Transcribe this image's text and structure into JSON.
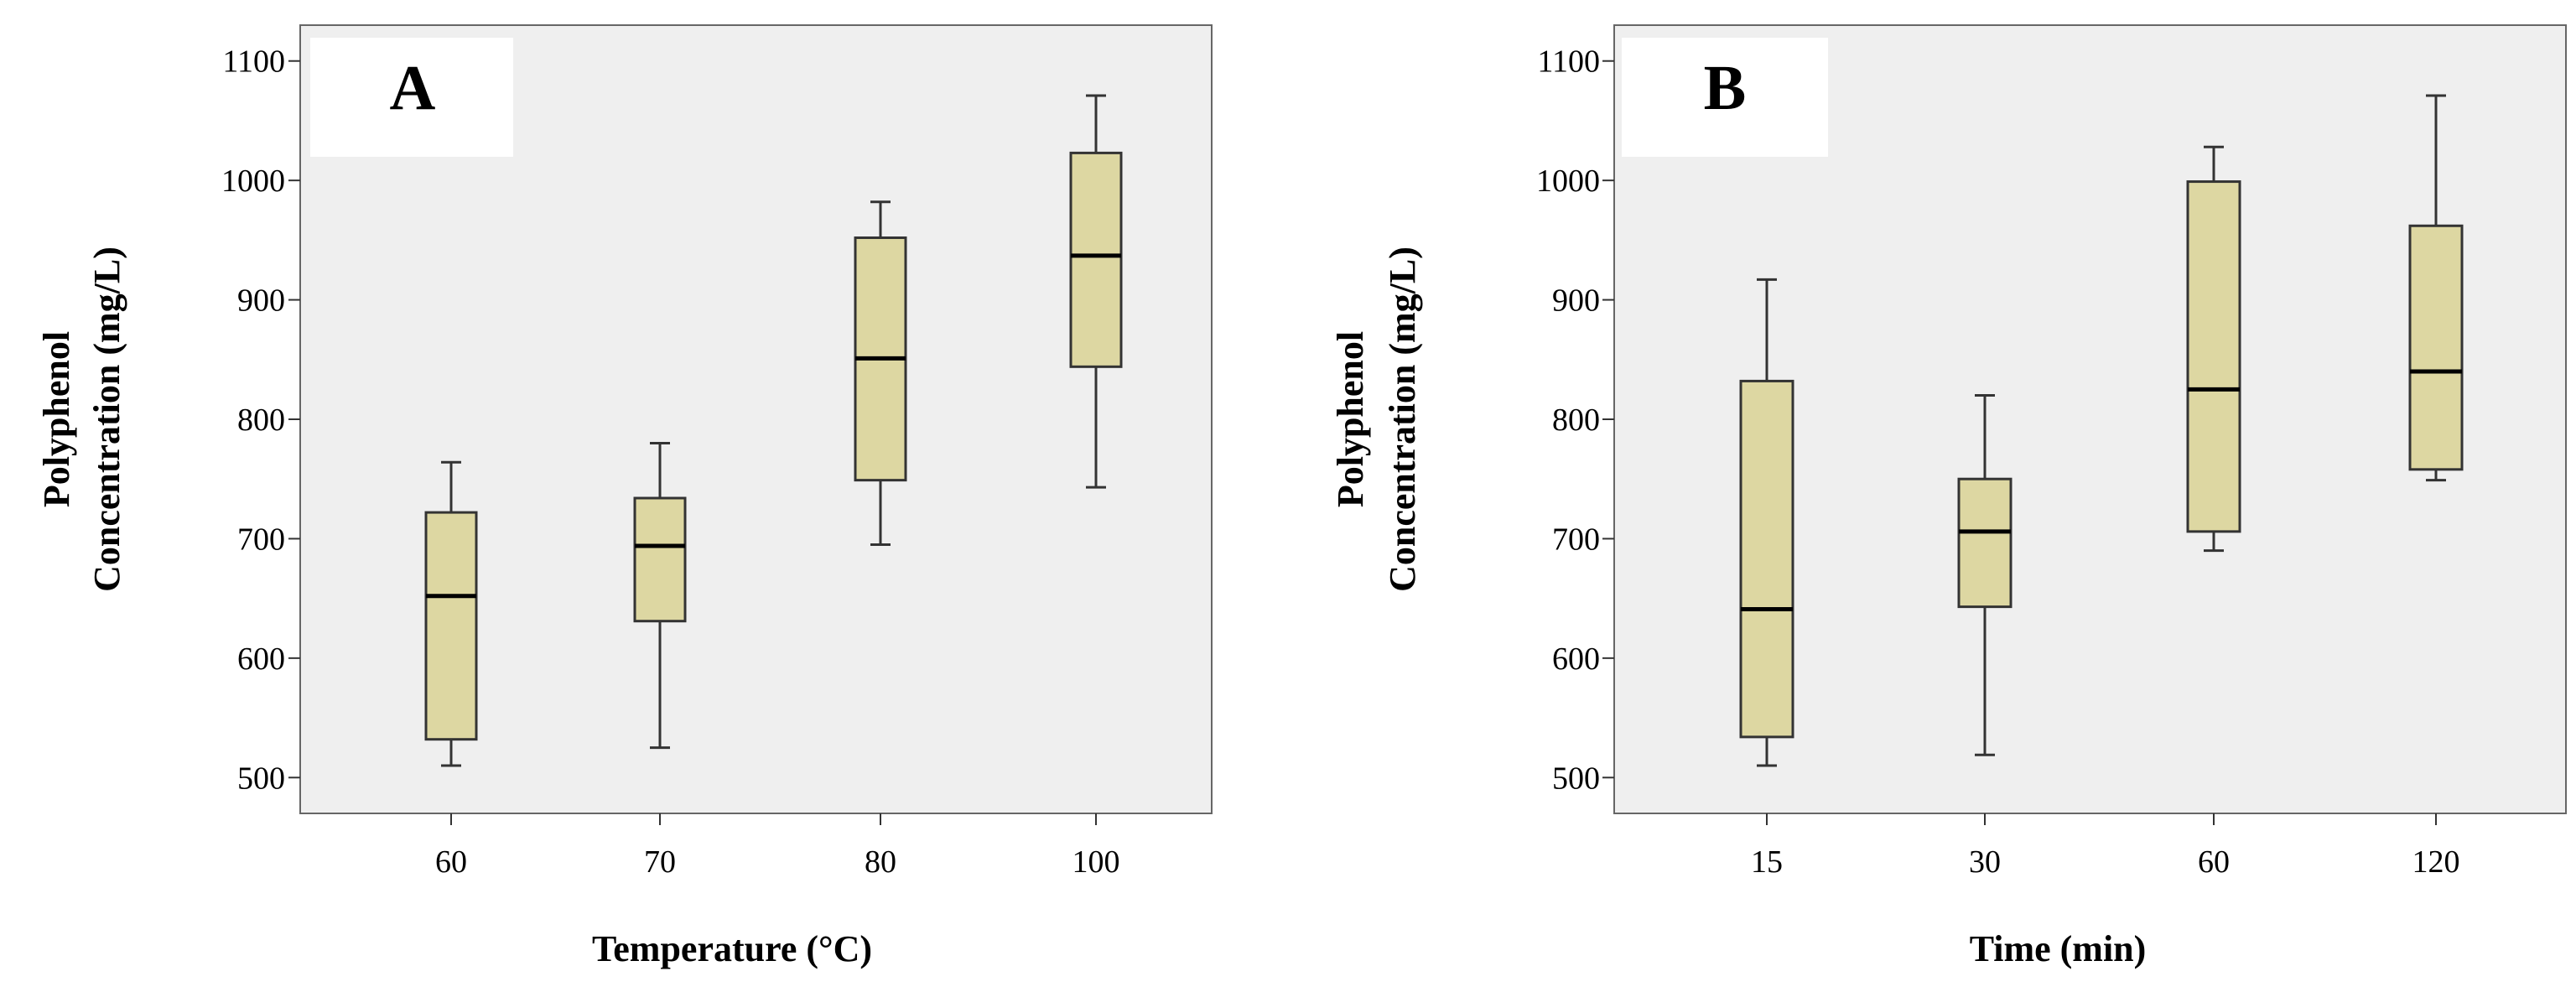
{
  "chart_data": [
    {
      "type": "boxplot",
      "panel_label": "A",
      "xlabel": "Temperature (°C)",
      "ylabel_lines": [
        "Polyphenol",
        "Concentration (mg/L)"
      ],
      "ylim": [
        470,
        1130
      ],
      "yticks": [
        500,
        600,
        700,
        800,
        900,
        1000,
        1100
      ],
      "categories": [
        "60",
        "70",
        "80",
        "100"
      ],
      "boxes": [
        {
          "min": 510,
          "q1": 532,
          "median": 652,
          "q3": 722,
          "max": 764
        },
        {
          "min": 525,
          "q1": 631,
          "median": 694,
          "q3": 734,
          "max": 780
        },
        {
          "min": 695,
          "q1": 749,
          "median": 851,
          "q3": 952,
          "max": 982
        },
        {
          "min": 743,
          "q1": 844,
          "median": 937,
          "q3": 1023,
          "max": 1071
        }
      ]
    },
    {
      "type": "boxplot",
      "panel_label": "B",
      "xlabel": "Time (min)",
      "ylabel_lines": [
        "Polyphenol",
        "Concentration (mg/L)"
      ],
      "ylim": [
        470,
        1130
      ],
      "yticks": [
        500,
        600,
        700,
        800,
        900,
        1000,
        1100
      ],
      "categories": [
        "15",
        "30",
        "60",
        "120"
      ],
      "boxes": [
        {
          "min": 510,
          "q1": 534,
          "median": 641,
          "q3": 832,
          "max": 917
        },
        {
          "min": 519,
          "q1": 643,
          "median": 706,
          "q3": 750,
          "max": 820
        },
        {
          "min": 690,
          "q1": 706,
          "median": 825,
          "q3": 999,
          "max": 1028
        },
        {
          "min": 749,
          "q1": 758,
          "median": 840,
          "q3": 962,
          "max": 1071
        }
      ]
    }
  ],
  "colors": {
    "plot_background": "#efefef",
    "box_fill": "#ddd7a2",
    "box_stroke": "#333333",
    "median": "#000000",
    "label_box": "#ffffff"
  }
}
